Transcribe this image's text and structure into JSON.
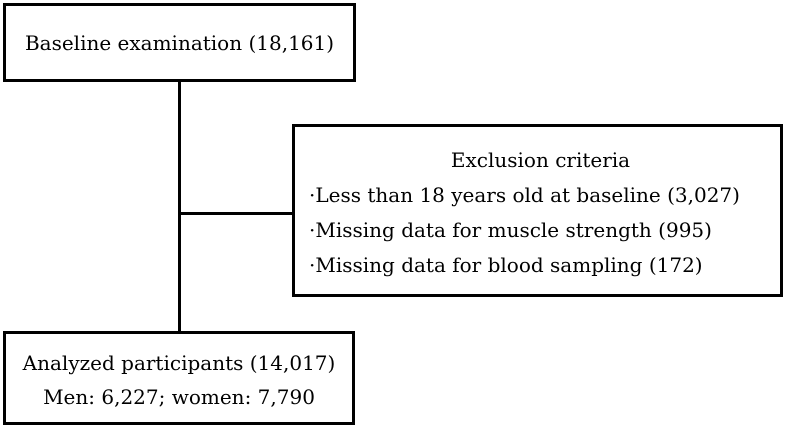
{
  "diagram": {
    "type": "study-flowchart",
    "colors": {
      "border": "#000000",
      "text": "#000000",
      "background": "#ffffff"
    },
    "baseline_box": {
      "label": "Baseline examination (18,161)"
    },
    "exclusion_box": {
      "title": "Exclusion criteria",
      "items": [
        "·Less than 18 years old at baseline (3,027)",
        "·Missing data for muscle strength (995)",
        "·Missing data for blood sampling (172)"
      ]
    },
    "analyzed_box": {
      "line1": "Analyzed participants (14,017)",
      "line2": "Men: 6,227; women: 7,790"
    }
  }
}
